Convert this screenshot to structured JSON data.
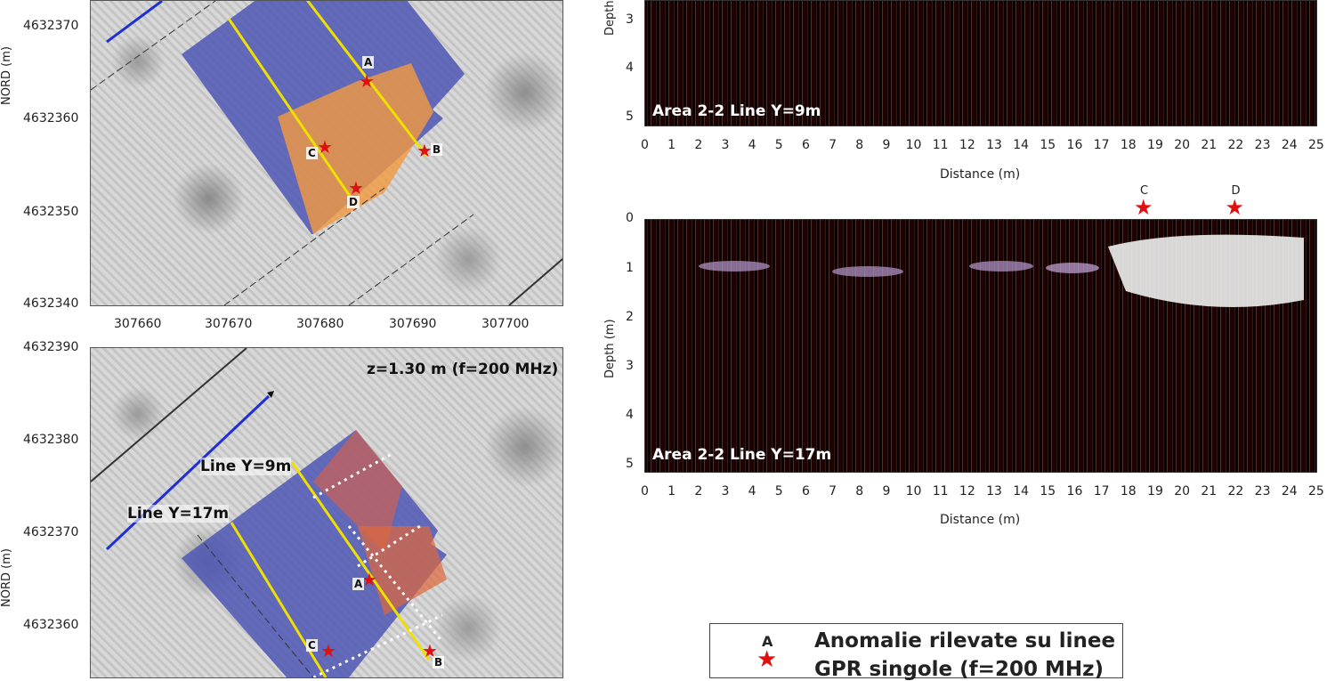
{
  "map_top": {
    "y_ticks": [
      "4632370",
      "4632360",
      "4632350",
      "4632340"
    ],
    "x_ticks": [
      "307660",
      "307670",
      "307680",
      "307690",
      "307700"
    ],
    "y_axis_title": "NORD (m)",
    "points": {
      "a": "A",
      "b": "B",
      "c": "C",
      "d": "D"
    }
  },
  "map_bottom": {
    "y_ticks": [
      "4632390",
      "4632380",
      "4632370",
      "4632360"
    ],
    "y_axis_title": "NORD (m)",
    "title": "z=1.30 m (f=200 MHz)",
    "line_labels": [
      "Line Y=9m",
      "Line Y=17m"
    ],
    "points": {
      "a": "A",
      "b": "B",
      "c": "C"
    }
  },
  "radar_top": {
    "label": "Area 2-2 Line Y=9m",
    "y_ticks": [
      "3",
      "4",
      "5"
    ],
    "y_axis_title": "Depth (m)",
    "x_ticks": [
      "0",
      "1",
      "2",
      "3",
      "4",
      "5",
      "6",
      "7",
      "8",
      "9",
      "10",
      "11",
      "12",
      "13",
      "14",
      "15",
      "16",
      "17",
      "18",
      "19",
      "20",
      "21",
      "22",
      "23",
      "24",
      "25"
    ],
    "x_axis_title": "Distance (m)"
  },
  "radar_bottom": {
    "label": "Area 2-2 Line Y=17m",
    "y_ticks": [
      "0",
      "1",
      "2",
      "3",
      "4",
      "5"
    ],
    "y_axis_title": "Depth (m)",
    "x_ticks": [
      "0",
      "1",
      "2",
      "3",
      "4",
      "5",
      "6",
      "7",
      "8",
      "9",
      "10",
      "11",
      "12",
      "13",
      "14",
      "15",
      "16",
      "17",
      "18",
      "19",
      "20",
      "21",
      "22",
      "23",
      "24",
      "25"
    ],
    "x_axis_title": "Distance (m)",
    "markers": [
      {
        "label": "C",
        "x": 18.6
      },
      {
        "label": "D",
        "x": 22
      }
    ]
  },
  "legend": {
    "marker_letter": "A",
    "line1": "Anomalie rilevate su linee",
    "line2": "GPR singole (f=200 MHz)"
  },
  "colors": {
    "anomaly_star": "#e01010",
    "gpr_line": "#1f2fd6",
    "survey_line": "#f0e000"
  }
}
